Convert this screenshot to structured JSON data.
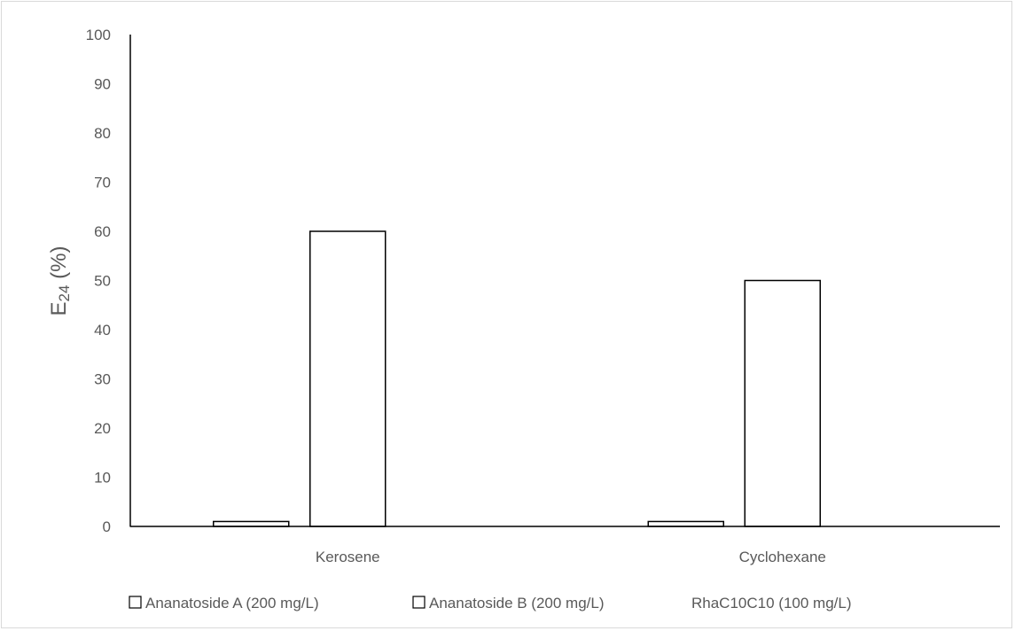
{
  "chart_data": {
    "type": "bar",
    "title": "",
    "xlabel": "",
    "ylabel": "E24 (%)",
    "ylabel_parts": {
      "base": "E",
      "subscript": "24",
      "rest": " (%)"
    },
    "ylim": [
      0,
      100
    ],
    "yticks": [
      0,
      10,
      20,
      30,
      40,
      50,
      60,
      70,
      80,
      90,
      100
    ],
    "grid": false,
    "legend_position": "bottom",
    "categories": [
      "Kerosene",
      "Cyclohexane"
    ],
    "series": [
      {
        "name": "Ananatoside A (200 mg/L)",
        "values": [
          1,
          1
        ],
        "fill": "#ffffff",
        "stroke": "#000000",
        "legend_marker": true
      },
      {
        "name": "Ananatoside  B (200 mg/L)",
        "values": [
          60,
          50
        ],
        "fill": "#ffffff",
        "stroke": "#000000",
        "legend_marker": true
      },
      {
        "name": "RhaC10C10 (100 mg/L)",
        "values": [
          0,
          0
        ],
        "fill": "none",
        "stroke": "none",
        "legend_marker": false
      }
    ],
    "colors": {
      "axis": "#000000",
      "text": "#595959",
      "border": "#d9d9d9"
    }
  }
}
